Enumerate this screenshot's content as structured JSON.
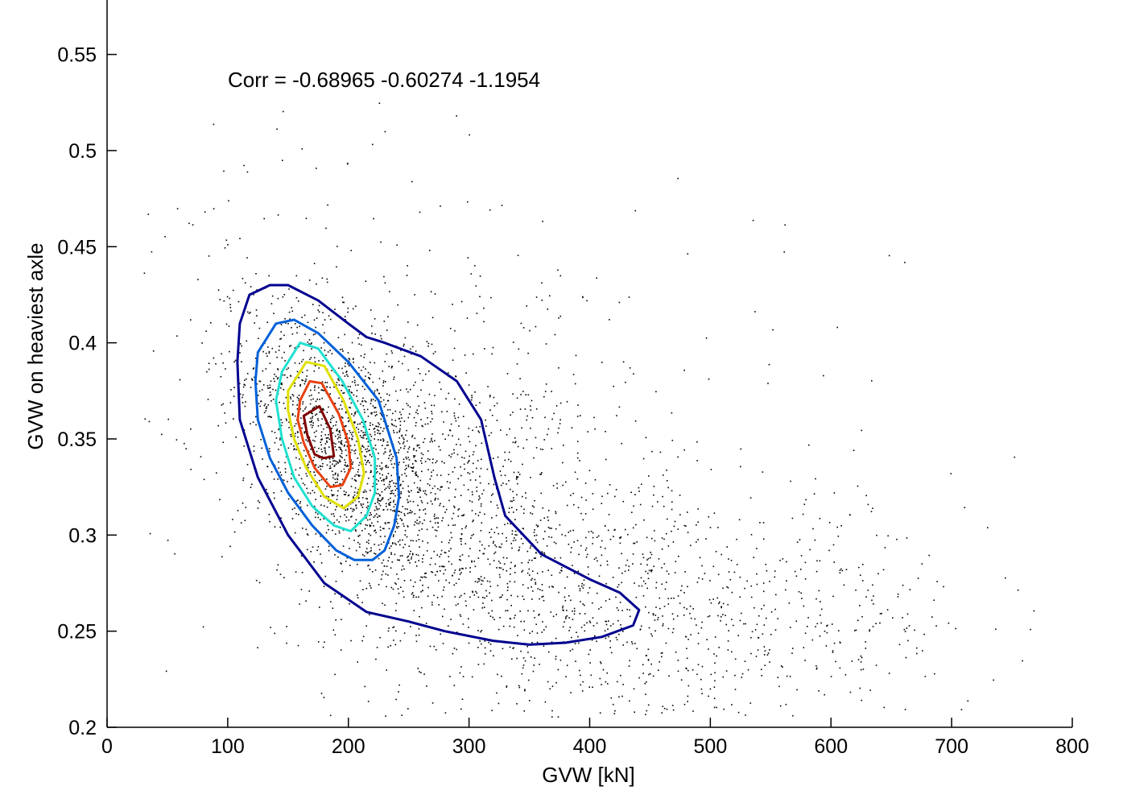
{
  "chart_data": {
    "type": "scatter",
    "title": "",
    "xlabel": "GVW [kN]",
    "ylabel": "GVW on heaviest axle",
    "xlim": [
      0,
      800
    ],
    "ylim": [
      0.2,
      0.58
    ],
    "xticks": [
      0,
      100,
      200,
      300,
      400,
      500,
      600,
      700,
      800
    ],
    "yticks": [
      0.2,
      0.25,
      0.3,
      0.35,
      0.4,
      0.45,
      0.5,
      0.55
    ],
    "xtick_labels": [
      "0",
      "100",
      "200",
      "300",
      "400",
      "500",
      "600",
      "700",
      "800"
    ],
    "ytick_labels": [
      "0.2",
      "0.25",
      "0.3",
      "0.35",
      "0.4",
      "0.45",
      "0.5",
      "0.55"
    ],
    "annotation": "Corr = -0.68965    -0.60274     -1.1954",
    "grid": false,
    "legend": "none",
    "scatter_color": "#000000",
    "scatter_clusters": [
      {
        "cx": 200,
        "cy": 0.345,
        "sx": 42,
        "sy": 0.035,
        "rho": -0.55,
        "n": 1300
      },
      {
        "cx": 290,
        "cy": 0.31,
        "sx": 95,
        "sy": 0.055,
        "rho": -0.5,
        "n": 1400
      },
      {
        "cx": 480,
        "cy": 0.26,
        "sx": 120,
        "sy": 0.03,
        "rho": -0.2,
        "n": 700
      },
      {
        "cx": 280,
        "cy": 0.38,
        "sx": 180,
        "sy": 0.07,
        "rho": -0.3,
        "n": 350
      }
    ],
    "contours": [
      {
        "color": "#00008F",
        "points": [
          [
            110,
            0.41
          ],
          [
            118,
            0.425
          ],
          [
            135,
            0.43
          ],
          [
            150,
            0.43
          ],
          [
            175,
            0.422
          ],
          [
            200,
            0.41
          ],
          [
            215,
            0.403
          ],
          [
            230,
            0.4
          ],
          [
            260,
            0.393
          ],
          [
            290,
            0.38
          ],
          [
            310,
            0.36
          ],
          [
            321,
            0.33
          ],
          [
            330,
            0.31
          ],
          [
            360,
            0.29
          ],
          [
            400,
            0.277
          ],
          [
            425,
            0.27
          ],
          [
            441,
            0.261
          ],
          [
            436,
            0.253
          ],
          [
            410,
            0.247
          ],
          [
            380,
            0.244
          ],
          [
            350,
            0.243
          ],
          [
            320,
            0.245
          ],
          [
            280,
            0.25
          ],
          [
            250,
            0.255
          ],
          [
            215,
            0.26
          ],
          [
            180,
            0.275
          ],
          [
            150,
            0.3
          ],
          [
            125,
            0.33
          ],
          [
            110,
            0.36
          ],
          [
            108,
            0.39
          ],
          [
            110,
            0.41
          ]
        ]
      },
      {
        "color": "#0060D8",
        "points": [
          [
            125,
            0.395
          ],
          [
            140,
            0.41
          ],
          [
            155,
            0.412
          ],
          [
            175,
            0.405
          ],
          [
            200,
            0.39
          ],
          [
            225,
            0.37
          ],
          [
            240,
            0.34
          ],
          [
            242,
            0.32
          ],
          [
            238,
            0.305
          ],
          [
            230,
            0.292
          ],
          [
            220,
            0.287
          ],
          [
            205,
            0.287
          ],
          [
            190,
            0.292
          ],
          [
            170,
            0.305
          ],
          [
            150,
            0.322
          ],
          [
            135,
            0.34
          ],
          [
            125,
            0.36
          ],
          [
            123,
            0.38
          ],
          [
            125,
            0.395
          ]
        ]
      },
      {
        "color": "#20E0D0",
        "points": [
          [
            145,
            0.385
          ],
          [
            160,
            0.4
          ],
          [
            175,
            0.397
          ],
          [
            195,
            0.38
          ],
          [
            212,
            0.36
          ],
          [
            222,
            0.34
          ],
          [
            222,
            0.322
          ],
          [
            215,
            0.31
          ],
          [
            202,
            0.302
          ],
          [
            188,
            0.305
          ],
          [
            170,
            0.315
          ],
          [
            155,
            0.33
          ],
          [
            145,
            0.35
          ],
          [
            140,
            0.37
          ],
          [
            145,
            0.385
          ]
        ]
      },
      {
        "color": "#E0E000",
        "points": [
          [
            150,
            0.375
          ],
          [
            165,
            0.39
          ],
          [
            180,
            0.388
          ],
          [
            196,
            0.37
          ],
          [
            208,
            0.35
          ],
          [
            213,
            0.332
          ],
          [
            208,
            0.32
          ],
          [
            196,
            0.314
          ],
          [
            180,
            0.32
          ],
          [
            165,
            0.335
          ],
          [
            155,
            0.35
          ],
          [
            150,
            0.365
          ],
          [
            150,
            0.375
          ]
        ]
      },
      {
        "color": "#E84010",
        "points": [
          [
            160,
            0.37
          ],
          [
            168,
            0.38
          ],
          [
            178,
            0.379
          ],
          [
            192,
            0.363
          ],
          [
            200,
            0.348
          ],
          [
            202,
            0.335
          ],
          [
            195,
            0.326
          ],
          [
            185,
            0.325
          ],
          [
            172,
            0.335
          ],
          [
            163,
            0.348
          ],
          [
            158,
            0.36
          ],
          [
            160,
            0.37
          ]
        ]
      },
      {
        "color": "#7F0000",
        "points": [
          [
            163,
            0.362
          ],
          [
            176,
            0.367
          ],
          [
            185,
            0.355
          ],
          [
            188,
            0.341
          ],
          [
            179,
            0.34
          ],
          [
            172,
            0.342
          ],
          [
            166,
            0.352
          ],
          [
            163,
            0.362
          ]
        ]
      }
    ]
  }
}
